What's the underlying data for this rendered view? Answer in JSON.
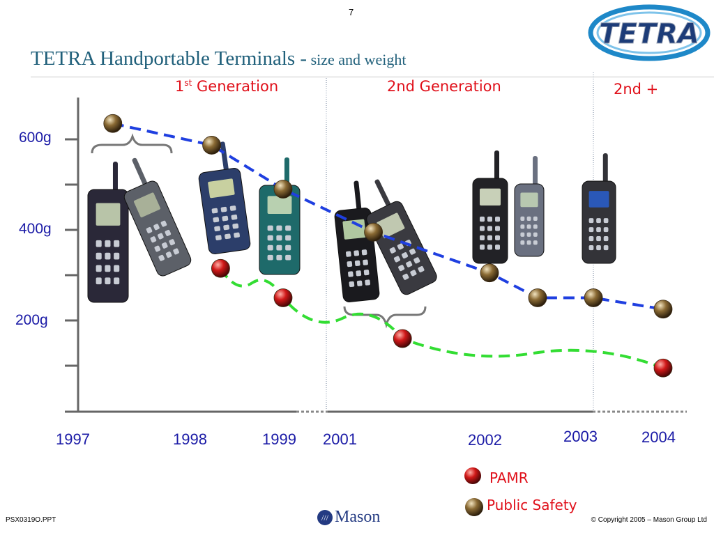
{
  "page_number": "7",
  "title": {
    "main": "TETRA Handportable Terminals  -",
    "sub": " size and weight"
  },
  "logo": {
    "text": "TETRA",
    "colors": {
      "ring": "#1e88c8",
      "letters": "#1d3c78"
    }
  },
  "generations": {
    "first_main": "1",
    "first_sup": "st",
    "first_rest": " Generation",
    "second": "2nd Generation",
    "second_plus": "2nd +"
  },
  "legend": {
    "pamr": "PAMR",
    "public_safety": "Public Safety"
  },
  "footer": {
    "left": "PSX0319O.PPT",
    "right": "© Copyright 2005 – Mason Group Ltd",
    "brand": "Mason"
  },
  "colors": {
    "public_safety_line": "#1f3fe0",
    "pamr_line": "#33dd33",
    "label_blue": "#1a1aa6",
    "label_red": "#e0101a",
    "axis": "#666666"
  },
  "chart_data": {
    "type": "line",
    "title": "",
    "xlabel": "",
    "ylabel": "",
    "y_tick_labels": [
      "600g",
      "400g",
      "200g"
    ],
    "x_tick_labels": [
      "1997",
      "1998",
      "1999",
      "2001",
      "2002",
      "2003",
      "2004"
    ],
    "ylim": [
      0,
      700
    ],
    "series": [
      {
        "name": "Public Safety",
        "color": "#1f3fe0",
        "points": [
          {
            "year": 1997.3,
            "grams": 635
          },
          {
            "year": 1998.2,
            "grams": 587
          },
          {
            "year": 1999.0,
            "grams": 490
          },
          {
            "year": 2001.2,
            "grams": 395
          },
          {
            "year": 2002.0,
            "grams": 305
          },
          {
            "year": 2002.5,
            "grams": 250
          },
          {
            "year": 2003.1,
            "grams": 250
          },
          {
            "year": 2004.0,
            "grams": 225
          }
        ]
      },
      {
        "name": "PAMR",
        "color": "#33dd33",
        "points": [
          {
            "year": 1998.3,
            "grams": 315
          },
          {
            "year": 1999.0,
            "grams": 250
          },
          {
            "year": 2001.4,
            "grams": 160
          },
          {
            "year": 2004.0,
            "grams": 95
          }
        ]
      }
    ]
  }
}
